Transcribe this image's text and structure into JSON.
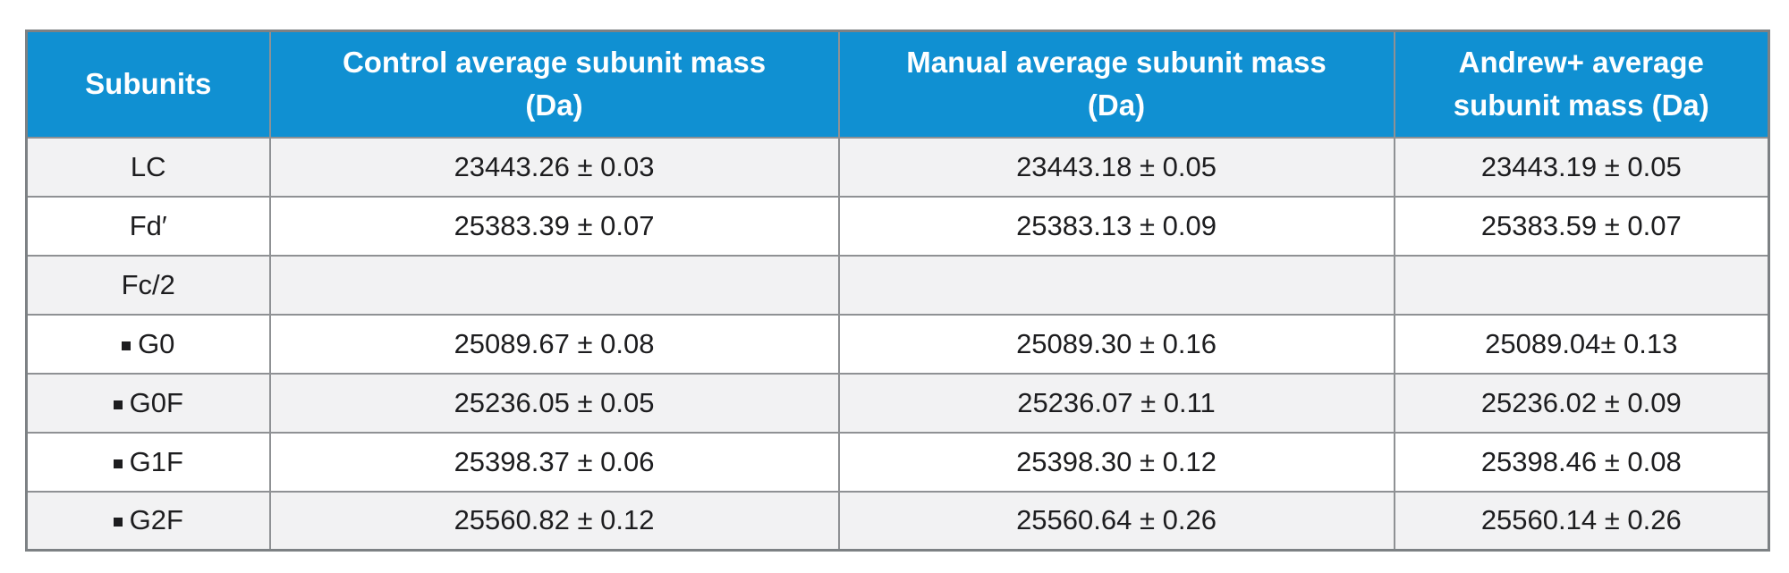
{
  "table": {
    "header": {
      "subunits": "Subunits",
      "control": "Control average subunit mass\n(Da)",
      "manual": "Manual average subunit mass\n(Da)",
      "andrew": "Andrew+ average\nsubunit mass (Da)"
    },
    "rows": [
      {
        "subunit": "LC",
        "bullet": false,
        "control": "23443.26 ± 0.03",
        "manual": "23443.18 ± 0.05",
        "andrew": "23443.19 ± 0.05"
      },
      {
        "subunit": "Fd′",
        "bullet": false,
        "control": "25383.39 ± 0.07",
        "manual": "25383.13 ± 0.09",
        "andrew": "25383.59 ± 0.07"
      },
      {
        "subunit": "Fc/2",
        "bullet": false,
        "control": "",
        "manual": "",
        "andrew": ""
      },
      {
        "subunit": "G0",
        "bullet": true,
        "control": "25089.67 ± 0.08",
        "manual": "25089.30 ± 0.16",
        "andrew": "25089.04± 0.13"
      },
      {
        "subunit": "G0F",
        "bullet": true,
        "control": "25236.05 ± 0.05",
        "manual": "25236.07 ± 0.11",
        "andrew": "25236.02 ± 0.09"
      },
      {
        "subunit": "G1F",
        "bullet": true,
        "control": "25398.37 ± 0.06",
        "manual": "25398.30 ± 0.12",
        "andrew": "25398.46 ± 0.08"
      },
      {
        "subunit": "G2F",
        "bullet": true,
        "control": "25560.82 ± 0.12",
        "manual": "25560.64 ± 0.26",
        "andrew": "25560.14 ± 0.26"
      }
    ],
    "colors": {
      "header_bg": "#1090d2",
      "header_text": "#ffffff",
      "row_bg": "#ffffff",
      "row_alt_bg": "#f2f2f3",
      "border": "#8f9194",
      "text": "#1d1d1f"
    }
  }
}
